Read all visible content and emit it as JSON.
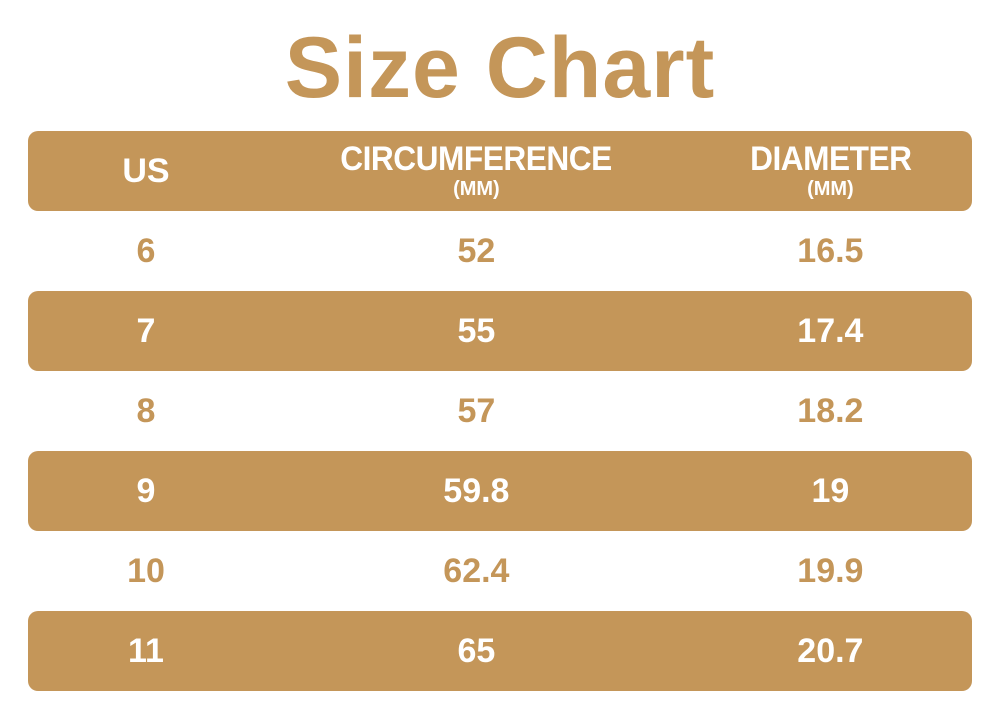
{
  "page": {
    "title": "Size Chart",
    "accent_color": "#c49659",
    "background_color": "#ffffff",
    "band_text_color": "#ffffff"
  },
  "table": {
    "columns": [
      {
        "label": "US",
        "unit": ""
      },
      {
        "label": "CIRCUMFERENCE",
        "unit": "(MM)"
      },
      {
        "label": "DIAMETER",
        "unit": "(MM)"
      }
    ],
    "rows": [
      {
        "highlight": false,
        "cells": [
          "6",
          "52",
          "16.5"
        ]
      },
      {
        "highlight": true,
        "cells": [
          "7",
          "55",
          "17.4"
        ]
      },
      {
        "highlight": false,
        "cells": [
          "8",
          "57",
          "18.2"
        ]
      },
      {
        "highlight": true,
        "cells": [
          "9",
          "59.8",
          "19"
        ]
      },
      {
        "highlight": false,
        "cells": [
          "10",
          "62.4",
          "19.9"
        ]
      },
      {
        "highlight": true,
        "cells": [
          "11",
          "65",
          "20.7"
        ]
      }
    ]
  },
  "chart_data": {
    "type": "table",
    "title": "Size Chart",
    "columns": [
      "US",
      "CIRCUMFERENCE (MM)",
      "DIAMETER (MM)"
    ],
    "rows": [
      [
        6,
        52,
        16.5
      ],
      [
        7,
        55,
        17.4
      ],
      [
        8,
        57,
        18.2
      ],
      [
        9,
        59.8,
        19
      ],
      [
        10,
        62.4,
        19.9
      ],
      [
        11,
        65,
        20.7
      ]
    ]
  }
}
